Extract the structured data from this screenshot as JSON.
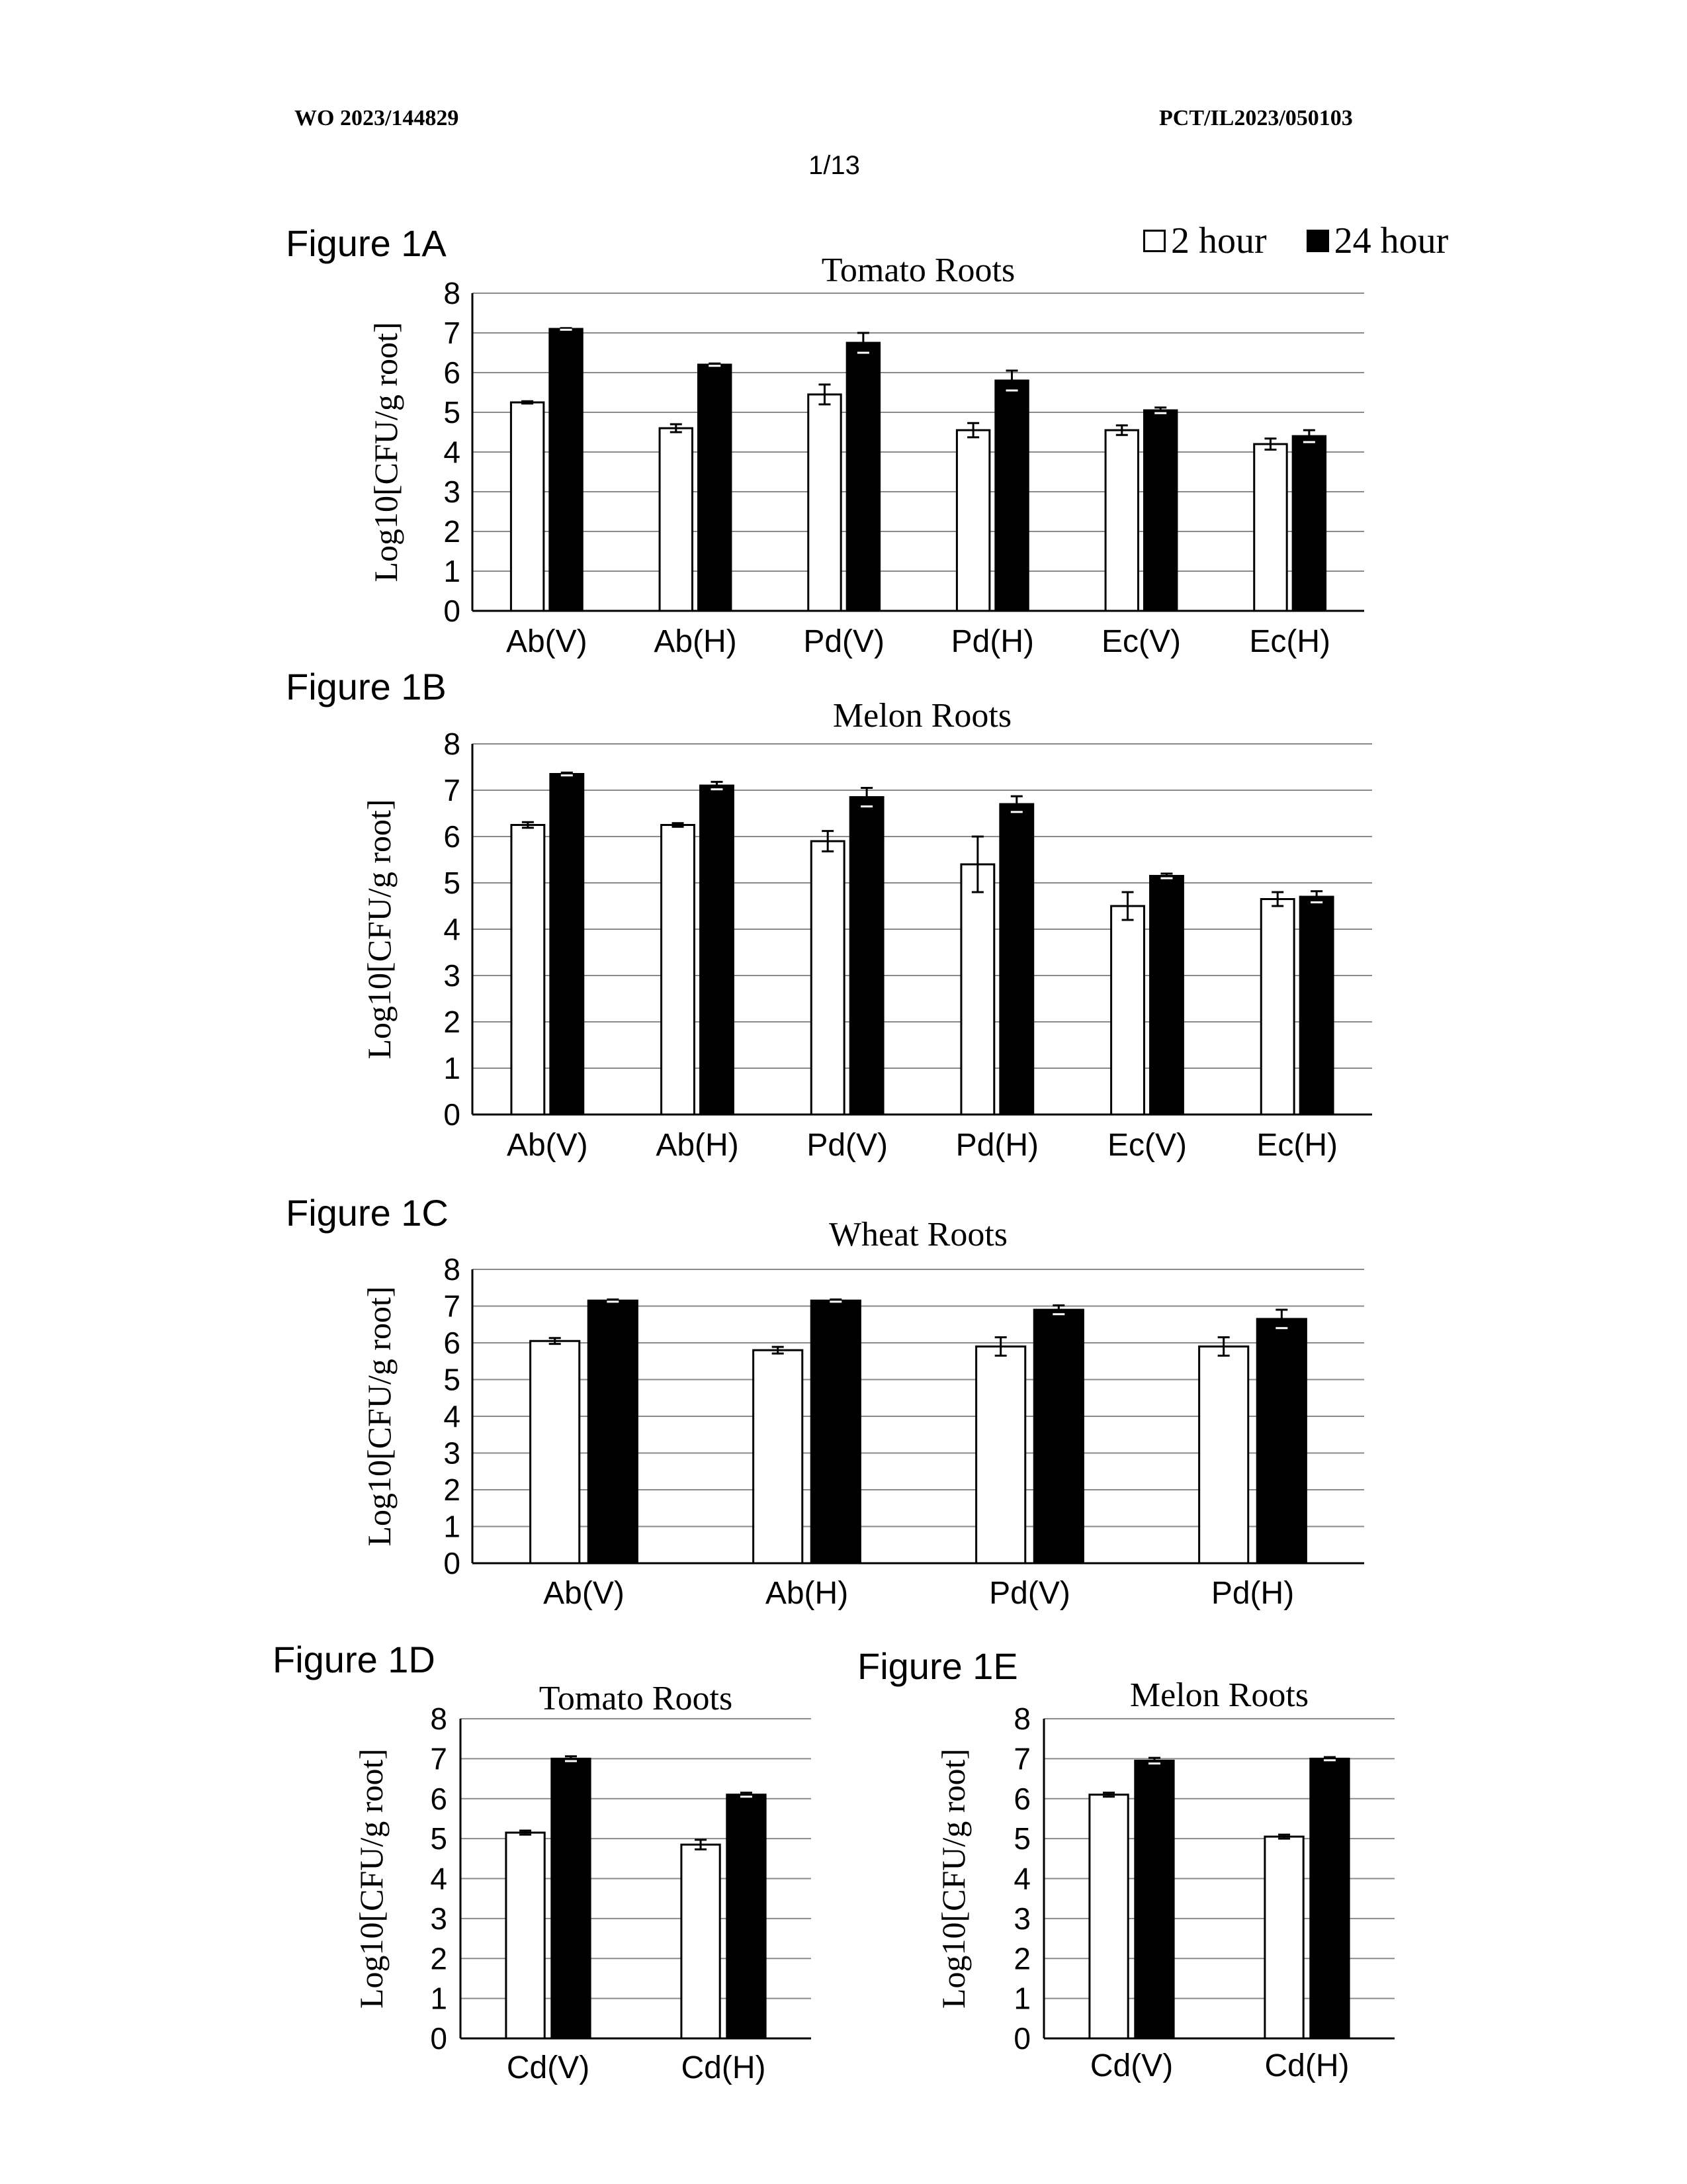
{
  "header": {
    "pub_number": "WO 2023/144829",
    "app_number": "PCT/IL2023/050103",
    "page": "1/13"
  },
  "legend": {
    "items": [
      {
        "label": "2 hour",
        "color": "#ffffff"
      },
      {
        "label": "24 hour",
        "color": "#000000"
      }
    ]
  },
  "figures": [
    {
      "label": "Figure 1A"
    },
    {
      "label": "Figure 1B"
    },
    {
      "label": "Figure 1C"
    },
    {
      "label": "Figure 1D"
    },
    {
      "label": "Figure 1E"
    }
  ],
  "chart_data": [
    {
      "type": "bar",
      "title": "Tomato Roots",
      "ylabel": "Log10[CFU/g root]",
      "xlabel": "",
      "ylim": [
        0,
        8
      ],
      "yticks": [
        "0",
        "1",
        "2",
        "3",
        "4",
        "5",
        "6",
        "7",
        "8"
      ],
      "grid": true,
      "categories": [
        "Ab(V)",
        "Ab(H)",
        "Pd(V)",
        "Pd(H)",
        "Ec(V)",
        "Ec(H)"
      ],
      "series": [
        {
          "name": "2 hour",
          "values": [
            5.25,
            4.6,
            5.45,
            4.55,
            4.55,
            4.2
          ],
          "errors": [
            0.03,
            0.1,
            0.25,
            0.18,
            0.12,
            0.14
          ]
        },
        {
          "name": "24 hour",
          "values": [
            7.1,
            6.2,
            6.75,
            5.8,
            5.05,
            4.4
          ],
          "errors": [
            0.02,
            0.03,
            0.25,
            0.25,
            0.07,
            0.15
          ]
        }
      ]
    },
    {
      "type": "bar",
      "title": "Melon Roots",
      "ylabel": "Log10[CFU/g root]",
      "xlabel": "",
      "ylim": [
        0,
        8
      ],
      "yticks": [
        "0",
        "1",
        "2",
        "3",
        "4",
        "5",
        "6",
        "7",
        "8"
      ],
      "grid": true,
      "categories": [
        "Ab(V)",
        "Ab(H)",
        "Pd(V)",
        "Pd(H)",
        "Ec(V)",
        "Ec(H)"
      ],
      "series": [
        {
          "name": "2 hour",
          "values": [
            6.25,
            6.25,
            5.9,
            5.4,
            4.5,
            4.65
          ],
          "errors": [
            0.06,
            0.04,
            0.22,
            0.6,
            0.3,
            0.15
          ]
        },
        {
          "name": "24 hour",
          "values": [
            7.35,
            7.1,
            6.85,
            6.7,
            5.15,
            4.7
          ],
          "errors": [
            0.03,
            0.08,
            0.2,
            0.17,
            0.05,
            0.12
          ]
        }
      ]
    },
    {
      "type": "bar",
      "title": "Wheat Roots",
      "ylabel": "Log10[CFU/g root]",
      "xlabel": "",
      "ylim": [
        0,
        8
      ],
      "yticks": [
        "0",
        "1",
        "2",
        "3",
        "4",
        "5",
        "6",
        "7",
        "8"
      ],
      "grid": true,
      "categories": [
        "Ab(V)",
        "Ab(H)",
        "Pd(V)",
        "Pd(H)"
      ],
      "series": [
        {
          "name": "2 hour",
          "values": [
            6.05,
            5.8,
            5.9,
            5.9
          ],
          "errors": [
            0.08,
            0.09,
            0.25,
            0.25
          ]
        },
        {
          "name": "24 hour",
          "values": [
            7.15,
            7.15,
            6.9,
            6.65
          ],
          "errors": [
            0.03,
            0.03,
            0.12,
            0.25
          ]
        }
      ]
    },
    {
      "type": "bar",
      "title": "Tomato Roots",
      "ylabel": "Log10[CFU/g root]",
      "xlabel": "",
      "ylim": [
        0,
        8
      ],
      "yticks": [
        "0",
        "1",
        "2",
        "3",
        "4",
        "5",
        "6",
        "7",
        "8"
      ],
      "grid": true,
      "categories": [
        "Cd(V)",
        "Cd(H)"
      ],
      "series": [
        {
          "name": "2 hour",
          "values": [
            5.15,
            4.85
          ],
          "errors": [
            0.05,
            0.12
          ]
        },
        {
          "name": "24 hour",
          "values": [
            7.0,
            6.1
          ],
          "errors": [
            0.06,
            0.05
          ]
        }
      ]
    },
    {
      "type": "bar",
      "title": "Melon Roots",
      "ylabel": "Log10[CFU/g root]",
      "xlabel": "",
      "ylim": [
        0,
        8
      ],
      "yticks": [
        "0",
        "1",
        "2",
        "3",
        "4",
        "5",
        "6",
        "7",
        "8"
      ],
      "grid": true,
      "categories": [
        "Cd(V)",
        "Cd(H)"
      ],
      "series": [
        {
          "name": "2 hour",
          "values": [
            6.1,
            5.05
          ],
          "errors": [
            0.05,
            0.05
          ]
        },
        {
          "name": "24 hour",
          "values": [
            6.95,
            7.0
          ],
          "errors": [
            0.07,
            0.04
          ]
        }
      ]
    }
  ]
}
